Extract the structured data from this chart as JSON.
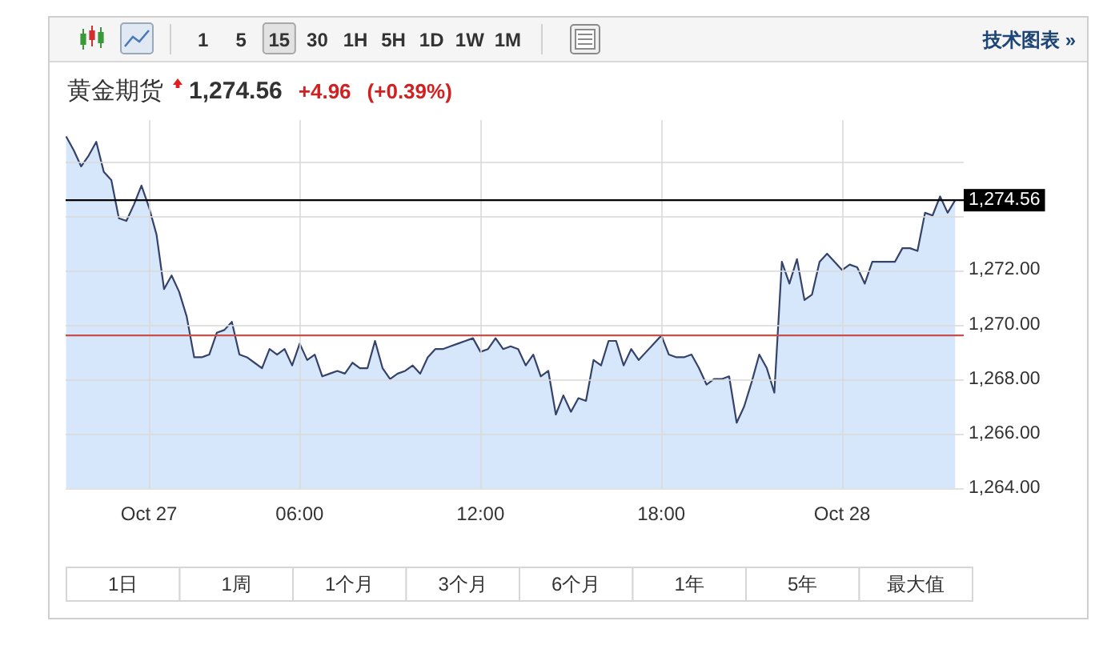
{
  "chart_data": {
    "type": "area",
    "title": "黄金期货",
    "annotations": [
      "1,274.56",
      "+4.96",
      "(+0.39%)",
      "1",
      "5",
      "15",
      "30",
      "1H",
      "5H",
      "1D",
      "1W",
      "1M",
      "技术图表 »",
      "1日",
      "1周",
      "1个月",
      "3个月",
      "6个月",
      "1年",
      "5年",
      "最大值"
    ],
    "categories": [
      null,
      null,
      null,
      null,
      null,
      null,
      null,
      null,
      null,
      null,
      null,
      "Oct 27",
      null,
      null,
      null,
      null,
      null,
      null,
      null,
      null,
      null,
      null,
      null,
      null,
      null,
      null,
      null,
      null,
      null,
      null,
      null,
      "06:00",
      null,
      null,
      null,
      null,
      null,
      null,
      null,
      null,
      null,
      null,
      null,
      null,
      null,
      null,
      null,
      null,
      null,
      null,
      null,
      null,
      null,
      null,
      null,
      "12:00",
      null,
      null,
      null,
      null,
      null,
      null,
      null,
      null,
      null,
      null,
      null,
      null,
      null,
      null,
      null,
      null,
      null,
      null,
      null,
      null,
      null,
      null,
      null,
      "18:00",
      null,
      null,
      null,
      null,
      null,
      null,
      null,
      null,
      null,
      null,
      null,
      null,
      null,
      null,
      null,
      null,
      null,
      null,
      null,
      null,
      null,
      null,
      null,
      "Oct 28",
      null,
      null,
      null,
      null,
      null,
      null,
      null,
      null,
      null,
      null,
      null,
      null,
      null,
      null,
      null
    ],
    "values": [
      1276.9,
      1276.4,
      1275.8,
      1276.2,
      1276.7,
      1275.6,
      1275.3,
      1273.9,
      1273.8,
      1274.4,
      1275.1,
      1274.3,
      1273.3,
      1271.3,
      1271.8,
      1271.2,
      1270.3,
      1268.8,
      1268.8,
      1268.9,
      1269.7,
      1269.8,
      1270.1,
      1268.9,
      1268.8,
      1268.6,
      1268.4,
      1269.1,
      1268.9,
      1269.1,
      1268.5,
      1269.3,
      1268.7,
      1268.9,
      1268.1,
      1268.2,
      1268.3,
      1268.2,
      1268.6,
      1268.4,
      1268.4,
      1269.4,
      1268.4,
      1268.0,
      1268.2,
      1268.3,
      1268.5,
      1268.2,
      1268.8,
      1269.1,
      1269.1,
      1269.2,
      1269.3,
      1269.4,
      1269.5,
      1269.0,
      1269.1,
      1269.5,
      1269.1,
      1269.2,
      1269.1,
      1268.5,
      1268.9,
      1268.1,
      1268.3,
      1266.7,
      1267.4,
      1266.8,
      1267.3,
      1267.2,
      1268.7,
      1268.5,
      1269.4,
      1269.4,
      1268.5,
      1269.1,
      1268.7,
      1269.0,
      1269.3,
      1269.6,
      1268.9,
      1268.8,
      1268.8,
      1268.9,
      1268.4,
      1267.8,
      1268.0,
      1268.0,
      1268.1,
      1266.4,
      1267.0,
      1267.9,
      1268.9,
      1268.4,
      1267.5,
      1272.3,
      1271.5,
      1272.4,
      1270.9,
      1271.1,
      1272.3,
      1272.6,
      1272.3,
      1272.0,
      1272.2,
      1272.1,
      1271.5,
      1272.3,
      1272.3,
      1272.3,
      1272.3,
      1272.8,
      1272.8,
      1272.7,
      1274.1,
      1274.0,
      1274.7,
      1274.1,
      1274.56
    ],
    "color": "#d6e7fb",
    "ylim": [
      1264,
      1277.5
    ],
    "yticks": [
      {
        "value": 1264,
        "label": "1,264.00"
      },
      {
        "value": 1266,
        "label": "1,266.00"
      },
      {
        "value": 1268,
        "label": "1,268.00"
      },
      {
        "value": 1270,
        "label": "1,270.00"
      },
      {
        "value": 1272,
        "label": "1,272.00"
      },
      {
        "value": 1274,
        "label": null
      },
      {
        "value": 1276,
        "label": null
      }
    ],
    "grid": true,
    "ref_lines": [
      {
        "axis": "y",
        "value": 1274.56,
        "label": "1,274.56",
        "color": "#000000"
      },
      {
        "axis": "y",
        "value": 1269.6,
        "color": "#c8504b"
      }
    ]
  }
}
